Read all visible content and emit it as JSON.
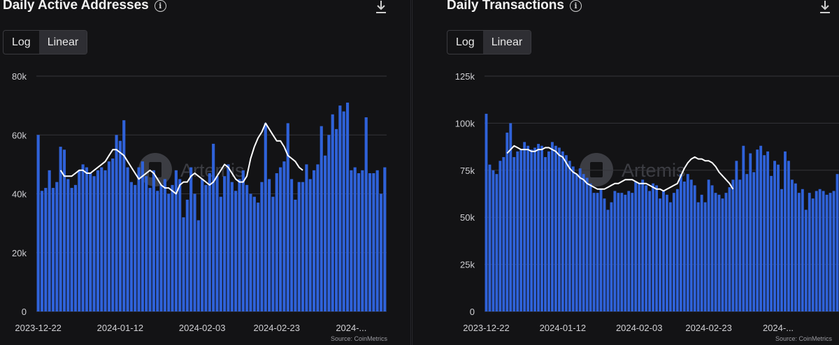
{
  "panels": [
    {
      "title": "Daily Active Addresses",
      "toggle": {
        "log_label": "Log",
        "linear_label": "Linear",
        "selected": "Linear"
      },
      "source": "Source: CoinMetrics",
      "watermark": "Artemis"
    },
    {
      "title": "Daily Transactions",
      "toggle": {
        "log_label": "Log",
        "linear_label": "Linear",
        "selected": "Linear"
      },
      "source": "Source: CoinMetrics",
      "watermark": "Artemis"
    }
  ],
  "colors": {
    "bar": "#2f62d9",
    "line": "#ffffff",
    "grid": "#34343a",
    "axis_text": "#d0d0d4"
  },
  "chart_data": [
    {
      "type": "bar",
      "title": "Daily Active Addresses",
      "xlabel": "",
      "ylabel": "",
      "ylim": [
        0,
        80000
      ],
      "yticks": [
        0,
        20000,
        40000,
        60000,
        80000
      ],
      "ytick_labels": [
        "0",
        "20k",
        "40k",
        "60k",
        "80k"
      ],
      "xtick_labels": [
        "2023-12-22",
        "2024-01-12",
        "2024-02-03",
        "2024-02-23",
        "2024-..."
      ],
      "xtick_indices": [
        0,
        22,
        44,
        64,
        84
      ],
      "series": [
        {
          "name": "Daily Active Addresses",
          "kind": "bar",
          "values": [
            60000,
            41000,
            42000,
            48000,
            42000,
            44000,
            56000,
            55000,
            45000,
            42000,
            43000,
            48000,
            50000,
            49000,
            47000,
            46000,
            48000,
            49000,
            48000,
            51000,
            52000,
            60000,
            58000,
            65000,
            49000,
            44000,
            43000,
            49000,
            51000,
            46000,
            42000,
            48000,
            41000,
            43000,
            45000,
            40000,
            43000,
            48000,
            45000,
            32000,
            38000,
            49000,
            40000,
            31000,
            45000,
            43000,
            47000,
            57000,
            46000,
            39000,
            46000,
            50000,
            44000,
            41000,
            45000,
            48000,
            43000,
            40000,
            39000,
            37000,
            44000,
            64000,
            45000,
            39000,
            47000,
            49000,
            51000,
            64000,
            45000,
            38000,
            44000,
            44000,
            50000,
            45000,
            48000,
            50000,
            63000,
            53000,
            60000,
            67000,
            62000,
            70000,
            68000,
            71000,
            48000,
            49000,
            47000,
            48000,
            66000,
            47000,
            47000,
            48000,
            40000,
            49000
          ]
        },
        {
          "name": "7-day average",
          "kind": "line",
          "start_index": 6,
          "values": [
            48000,
            46000,
            46000,
            46000,
            47000,
            48000,
            48000,
            47000,
            47000,
            48000,
            49000,
            50000,
            51000,
            53000,
            55000,
            55000,
            54000,
            53000,
            51000,
            49000,
            47000,
            45000,
            46000,
            47000,
            48000,
            47000,
            45000,
            43000,
            42000,
            42000,
            41000,
            40000,
            43000,
            44000,
            44000,
            46000,
            47000,
            46000,
            45000,
            44000,
            43000,
            44000,
            46000,
            48000,
            50000,
            49000,
            47000,
            45000,
            44000,
            44000,
            46000,
            52000,
            56000,
            59000,
            61000,
            64000,
            62000,
            60000,
            58000,
            58000,
            56000,
            53000,
            52000,
            51000,
            49000,
            48000
          ]
        }
      ]
    },
    {
      "type": "bar",
      "title": "Daily Transactions",
      "xlabel": "",
      "ylabel": "",
      "ylim": [
        0,
        125000
      ],
      "yticks": [
        0,
        25000,
        50000,
        75000,
        100000,
        125000
      ],
      "ytick_labels": [
        "0",
        "25k",
        "50k",
        "75k",
        "100k",
        "125k"
      ],
      "xtick_labels": [
        "2023-12-22",
        "2024-01-12",
        "2024-02-03",
        "2024-02-23",
        "2024-..."
      ],
      "xtick_indices": [
        0,
        22,
        44,
        64,
        84
      ],
      "series": [
        {
          "name": "Daily Transactions",
          "kind": "bar",
          "values": [
            105000,
            78000,
            75000,
            73000,
            80000,
            82000,
            95000,
            100000,
            82000,
            85000,
            86000,
            90000,
            88000,
            86000,
            87000,
            89000,
            88000,
            82000,
            85000,
            90000,
            88000,
            87000,
            85000,
            83000,
            80000,
            77000,
            73000,
            76000,
            73000,
            71000,
            68000,
            63000,
            63000,
            65000,
            60000,
            54000,
            58000,
            64000,
            63000,
            63000,
            62000,
            64000,
            63000,
            69000,
            68000,
            70000,
            67000,
            64000,
            68000,
            67000,
            60000,
            64000,
            62000,
            58000,
            63000,
            65000,
            73000,
            69000,
            73000,
            70000,
            67000,
            58000,
            62000,
            58000,
            70000,
            67000,
            63000,
            62000,
            60000,
            63000,
            66000,
            70000,
            80000,
            70000,
            88000,
            73000,
            84000,
            74000,
            86000,
            88000,
            83000,
            85000,
            72000,
            80000,
            78000,
            65000,
            85000,
            80000,
            70000,
            68000,
            63000,
            65000,
            54000,
            63000,
            60000,
            64000,
            65000,
            64000,
            62000,
            63000,
            64000,
            73000
          ]
        },
        {
          "name": "7-day average",
          "kind": "line",
          "start_index": 6,
          "values": [
            84000,
            86000,
            88000,
            87000,
            86000,
            86000,
            86000,
            85000,
            85000,
            86000,
            86000,
            87000,
            87000,
            86000,
            85000,
            83000,
            82000,
            79000,
            76000,
            74000,
            73000,
            71000,
            70000,
            68000,
            67000,
            66000,
            65000,
            65000,
            65000,
            66000,
            67000,
            68000,
            68000,
            69000,
            70000,
            70000,
            70000,
            69000,
            68000,
            68000,
            68000,
            67000,
            66000,
            65000,
            65000,
            64000,
            65000,
            66000,
            67000,
            68000,
            72000,
            76000,
            79000,
            81000,
            82000,
            81000,
            81000,
            80000,
            80000,
            79000,
            77000,
            74000,
            72000,
            70000,
            68000,
            65000
          ]
        }
      ]
    }
  ]
}
